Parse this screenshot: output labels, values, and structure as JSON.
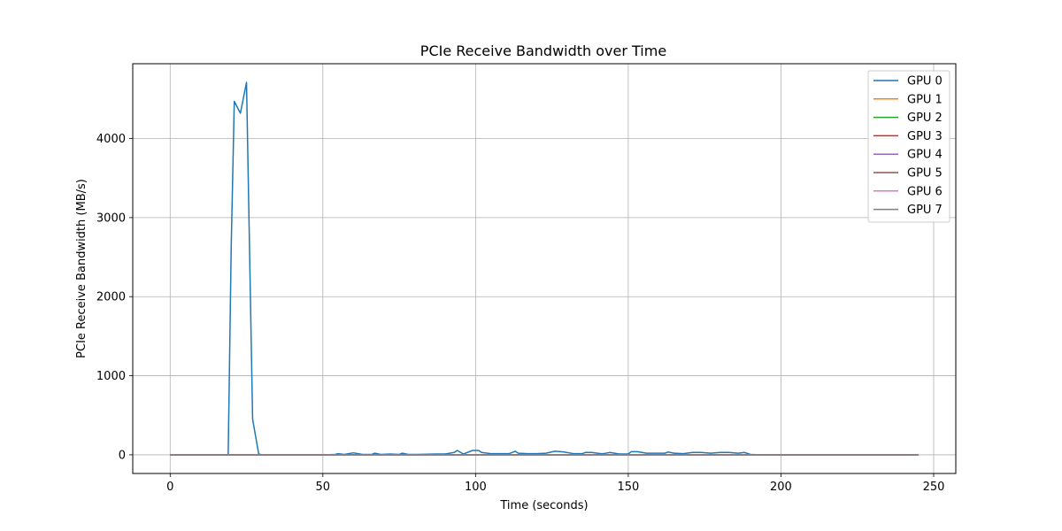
{
  "chart_data": {
    "type": "line",
    "title": "PCIe Receive Bandwidth over Time",
    "xlabel": "Time (seconds)",
    "ylabel": "PCIe Receive Bandwidth (MB/s)",
    "xlim": [
      -12.25,
      257.25
    ],
    "ylim": [
      -236,
      4946
    ],
    "xticks": [
      0,
      50,
      100,
      150,
      200,
      250
    ],
    "yticks": [
      0,
      1000,
      2000,
      3000,
      4000
    ],
    "grid": true,
    "legend_position": "top-right",
    "series": [
      {
        "name": "GPU 0",
        "color": "#1f77b4",
        "x": [
          0,
          3,
          6,
          9,
          12,
          15,
          18,
          19,
          20,
          21,
          23,
          25,
          27,
          29,
          30,
          33,
          36,
          39,
          42,
          45,
          48,
          51,
          54,
          55,
          57,
          60,
          63,
          66,
          67,
          69,
          72,
          75,
          76,
          78,
          81,
          84,
          87,
          90,
          93,
          94,
          96,
          99,
          101,
          102,
          105,
          108,
          111,
          113,
          114,
          117,
          120,
          123,
          126,
          128,
          129,
          132,
          135,
          136,
          138,
          141,
          142,
          144,
          147,
          150,
          151,
          153,
          156,
          159,
          162,
          163,
          165,
          168,
          171,
          174,
          177,
          180,
          183,
          186,
          188,
          190,
          193,
          196,
          199,
          202,
          205,
          208,
          211,
          214,
          217,
          220,
          223,
          226,
          229,
          232,
          235,
          238,
          241,
          244,
          245
        ],
        "y": [
          0,
          0,
          0,
          0,
          0,
          0,
          0,
          0,
          2650,
          4470,
          4320,
          4710,
          450,
          10,
          0,
          0,
          0,
          0,
          0,
          0,
          0,
          0,
          5,
          15,
          5,
          25,
          5,
          5,
          20,
          5,
          10,
          5,
          20,
          5,
          5,
          8,
          10,
          10,
          30,
          55,
          10,
          55,
          55,
          30,
          15,
          15,
          15,
          45,
          20,
          15,
          15,
          20,
          45,
          40,
          35,
          15,
          15,
          30,
          30,
          15,
          15,
          30,
          10,
          10,
          40,
          40,
          20,
          20,
          20,
          35,
          20,
          15,
          30,
          30,
          20,
          30,
          30,
          20,
          30,
          5,
          0,
          0,
          0,
          0,
          0,
          0,
          0,
          0,
          0,
          0,
          0,
          0,
          0,
          0,
          0,
          0,
          0,
          0,
          0
        ]
      },
      {
        "name": "GPU 1",
        "color": "#ff7f0e",
        "x": [
          0,
          245
        ],
        "y": [
          0,
          0
        ]
      },
      {
        "name": "GPU 2",
        "color": "#2ca02c",
        "x": [
          0,
          245
        ],
        "y": [
          0,
          0
        ]
      },
      {
        "name": "GPU 3",
        "color": "#d62728",
        "x": [
          0,
          245
        ],
        "y": [
          0,
          0
        ]
      },
      {
        "name": "GPU 4",
        "color": "#9467bd",
        "x": [
          0,
          245
        ],
        "y": [
          0,
          0
        ]
      },
      {
        "name": "GPU 5",
        "color": "#8c564b",
        "x": [
          0,
          245
        ],
        "y": [
          0,
          0
        ]
      },
      {
        "name": "GPU 6",
        "color": "#e377c2",
        "x": [
          0,
          245
        ],
        "y": [
          0,
          0
        ]
      },
      {
        "name": "GPU 7",
        "color": "#7f7f7f",
        "x": [
          0,
          245
        ],
        "y": [
          0,
          0
        ]
      }
    ]
  }
}
